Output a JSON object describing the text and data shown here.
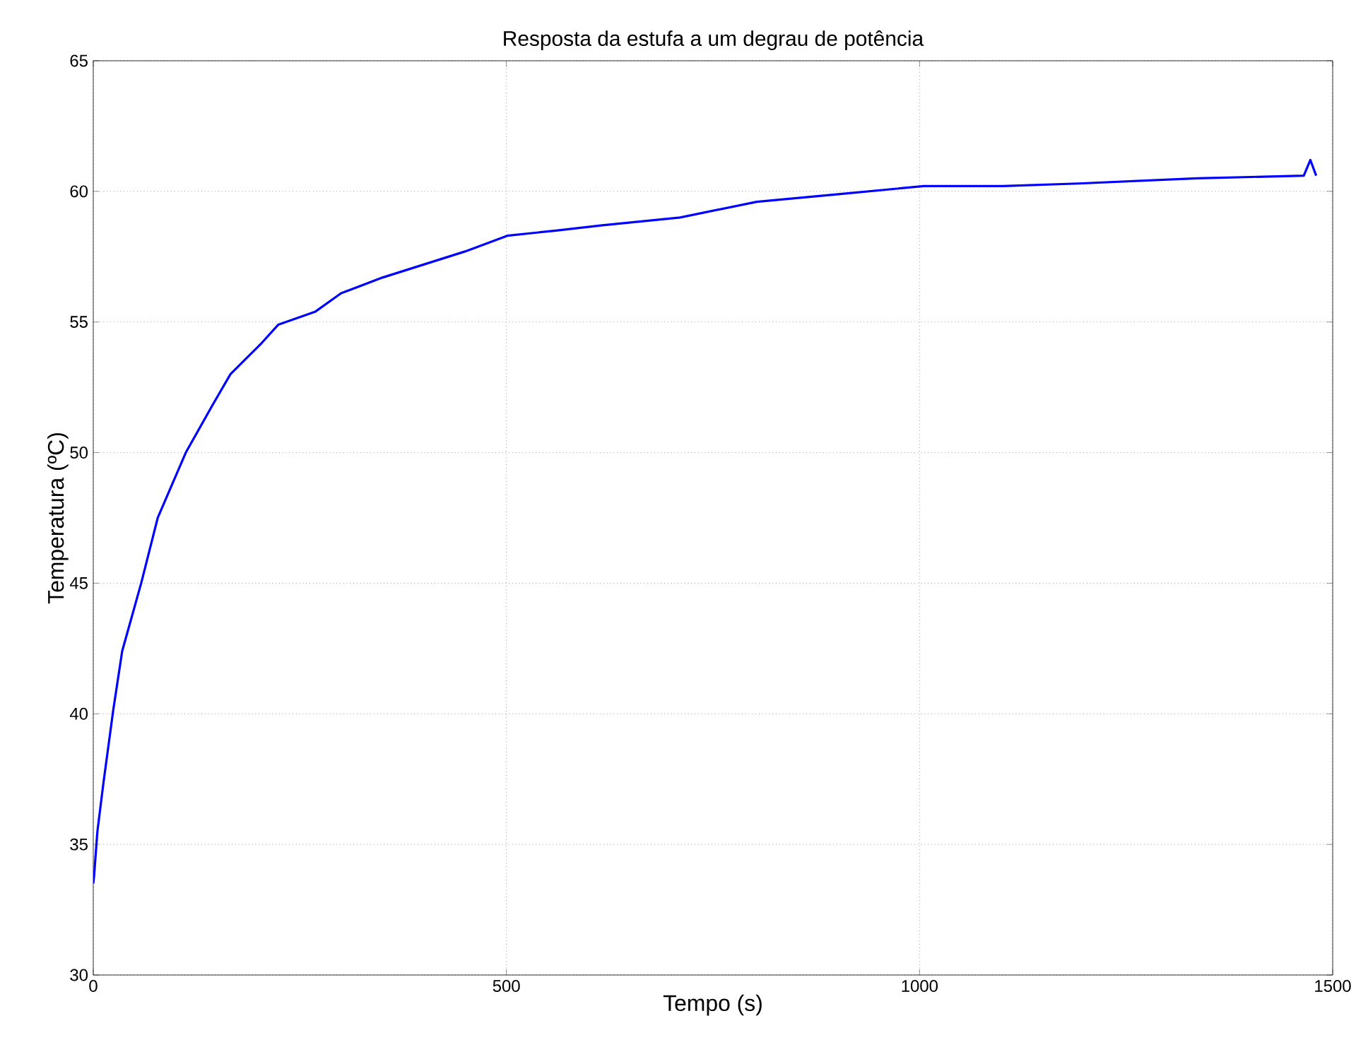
{
  "chart_data": {
    "type": "line",
    "title": "Resposta da estufa a um degrau de potência",
    "xlabel": "Tempo (s)",
    "ylabel": "Temperatura (ºC)",
    "series": [
      {
        "color": "#0000ff",
        "x": [
          0,
          1,
          5,
          12.5,
          24,
          35,
          58,
          78,
          112,
          144,
          166,
          204,
          224,
          269,
          300,
          350,
          400,
          450,
          501,
          560,
          616,
          710,
          803,
          904,
          1005,
          1100,
          1192,
          1336,
          1465,
          1473,
          1480
        ],
        "values": [
          33.5,
          33.8,
          35.5,
          37.4,
          40.1,
          42.4,
          45,
          47.5,
          50,
          51.8,
          53,
          54.2,
          54.9,
          55.4,
          56.1,
          56.7,
          57.2,
          57.7,
          58.3,
          58.5,
          58.7,
          59.0,
          59.6,
          59.9,
          60.2,
          60.2,
          60.3,
          60.5,
          60.6,
          61.2,
          60.6
        ]
      }
    ],
    "xlim": [
      0,
      1500
    ],
    "ylim": [
      30,
      65
    ],
    "xticks": [
      0,
      500,
      1000,
      1500
    ],
    "yticks": [
      30,
      35,
      40,
      45,
      50,
      55,
      60,
      65
    ],
    "grid": true,
    "line_style": "solid",
    "marker": "none"
  }
}
